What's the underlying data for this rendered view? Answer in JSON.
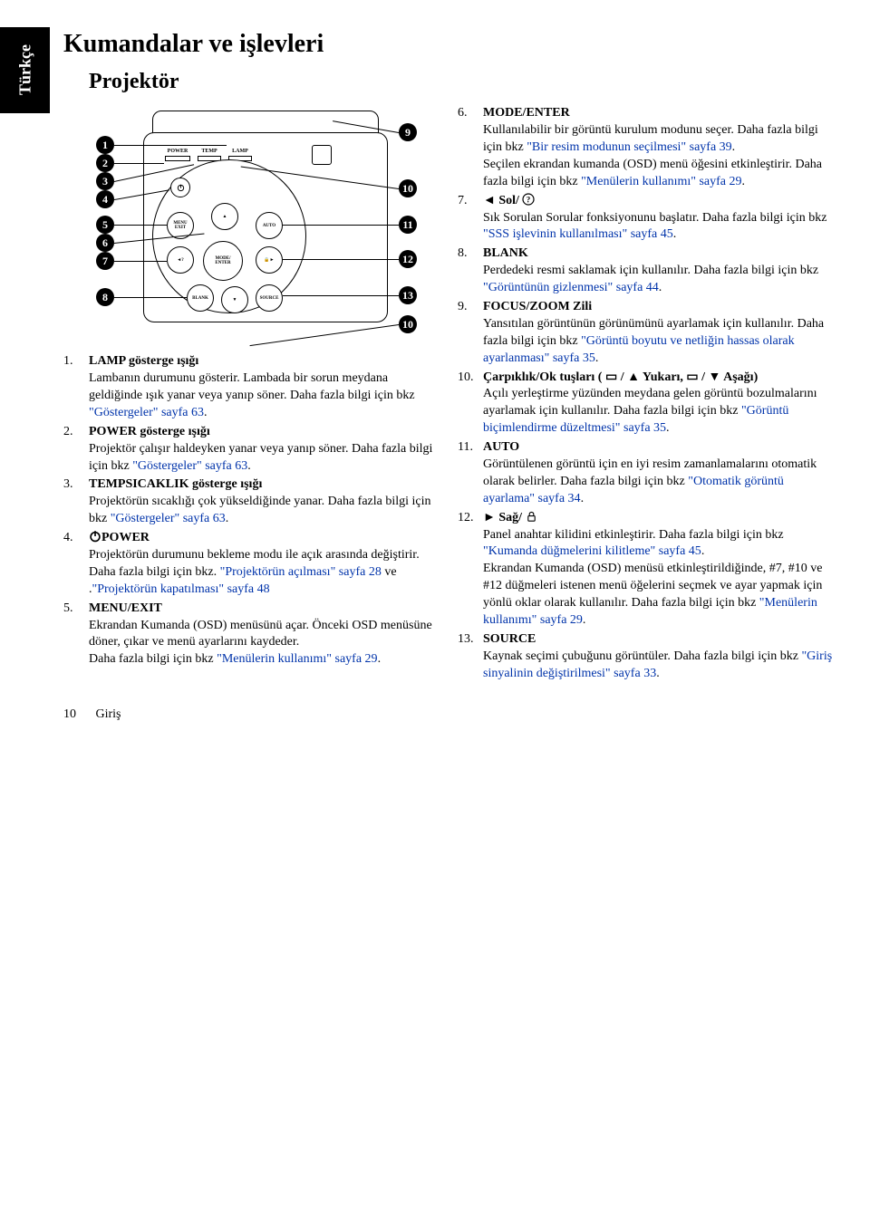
{
  "sideTab": "Türkçe",
  "title": "Kumandalar ve işlevleri",
  "subtitle": "Projektör",
  "diagram": {
    "indicators": {
      "power": "POWER",
      "temp": "TEMP",
      "lamp": "LAMP"
    },
    "buttons": {
      "menu": "MENU\nEXIT",
      "auto": "AUTO",
      "mode": "MODE/\nENTER",
      "blank": "BLANK",
      "source": "SOURCE"
    },
    "leftNums": [
      "1",
      "2",
      "3",
      "4",
      "5",
      "6",
      "7",
      "8"
    ],
    "rightNums": [
      "9",
      "10",
      "11",
      "12",
      "13",
      "10"
    ]
  },
  "left": [
    {
      "n": "1.",
      "title": "LAMP gösterge ışığı",
      "body": "Lambanın durumunu gösterir. Lambada bir sorun meydana geldiğinde ışık yanar veya yanıp söner. Daha fazla bilgi için bkz ",
      "link": "\"Göstergeler\" sayfa 63",
      "tail": "."
    },
    {
      "n": "2.",
      "title": "POWER gösterge ışığı",
      "body": "Projektör çalışır haldeyken yanar veya yanıp söner. Daha fazla bilgi için bkz ",
      "link": "\"Göstergeler\" sayfa 63",
      "tail": "."
    },
    {
      "n": "3.",
      "title": "TEMPSICAKLIK gösterge ışığı",
      "body": "Projektörün sıcaklığı çok yükseldiğinde yanar. Daha fazla bilgi için bkz ",
      "link": "\"Göstergeler\" sayfa 63",
      "tail": "."
    },
    {
      "n": "4.",
      "iconTitle": "power",
      "title": "POWER",
      "body": "Projektörün durumunu bekleme modu ile açık arasında değiştirir.\nDaha fazla bilgi için bkz. ",
      "link": "\"Projektörün açılması\" sayfa 28",
      "mid": " ve ",
      "link2": "\"Projektörün kapatılması\" sayfa 48",
      "tail": "."
    },
    {
      "n": "5.",
      "title": "MENU/EXIT",
      "body": "Ekrandan Kumanda (OSD) menüsünü açar. Önceki OSD menüsüne döner, çıkar ve menü ayarlarını kaydeder.\nDaha fazla bilgi için bkz ",
      "link": "\"Menülerin kullanımı\" sayfa 29",
      "tail": "."
    }
  ],
  "right": [
    {
      "n": "6.",
      "title": "MODE/ENTER",
      "body": "Kullanılabilir bir görüntü kurulum modunu seçer. Daha fazla bilgi için bkz ",
      "link": "\"Bir resim modunun seçilmesi\" sayfa 39",
      "tail": ".\nSeçilen ekrandan kumanda (OSD) menü öğesini etkinleştirir. Daha fazla bilgi için bkz ",
      "link2": "\"Menülerin kullanımı\" sayfa 29",
      "tail2": "."
    },
    {
      "n": "7.",
      "iconTitle": "left-q",
      "title": " Sol/ ",
      "body": "Sık Sorulan Sorular fonksiyonunu başlatır. Daha fazla bilgi için bkz ",
      "link": "\"SSS işlevinin kullanılması\" sayfa 45",
      "tail": "."
    },
    {
      "n": "8.",
      "title": "BLANK",
      "body": "Perdedeki resmi saklamak için kullanılır. Daha fazla bilgi için bkz ",
      "link": "\"Görüntünün gizlenmesi\" sayfa 44",
      "tail": "."
    },
    {
      "n": "9.",
      "title": "FOCUS/ZOOM Zili",
      "body": "Yansıtılan görüntünün görünümünü ayarlamak için kullanılır. Daha fazla bilgi için bkz ",
      "link": "\"Görüntü boyutu ve netliğin hassas olarak ayarlanması\" sayfa 35",
      "tail": "."
    },
    {
      "n": "10.",
      "title": "Çarpıklık/Ok tuşları ( ▭ / ▲ Yukarı, ▭ / ▼ Aşağı)",
      "body": "Açılı yerleştirme yüzünden meydana gelen görüntü bozulmalarını ayarlamak için kullanılır. Daha fazla bilgi için bkz ",
      "link": "\"Görüntü biçimlendirme düzeltmesi\" sayfa 35",
      "tail": "."
    },
    {
      "n": "11.",
      "title": "AUTO",
      "body": "Görüntülenen görüntü için en iyi resim zamanlamalarını otomatik olarak belirler. Daha fazla bilgi için bkz ",
      "link": "\"Otomatik görüntü ayarlama\" sayfa 34",
      "tail": "."
    },
    {
      "n": "12.",
      "iconTitle": "right-lock",
      "title": " Sağ/ ",
      "body": "Panel anahtar kilidini etkinleştirir. Daha fazla bilgi için bkz ",
      "link": "\"Kumanda düğmelerini kilitleme\" sayfa 45",
      "tail": ".\nEkrandan Kumanda (OSD) menüsü etkinleştirildiğinde, #7, #10 ve #12 düğmeleri istenen menü öğelerini seçmek ve ayar yapmak için yönlü oklar olarak kullanılır. Daha fazla bilgi için bkz ",
      "link2": "\"Menülerin kullanımı\" sayfa 29",
      "tail2": "."
    },
    {
      "n": "13.",
      "title": "SOURCE",
      "body": "Kaynak seçimi çubuğunu görüntüler. Daha fazla bilgi için bkz ",
      "link": "\"Giriş sinyalinin değiştirilmesi\" sayfa 33",
      "tail": "."
    }
  ],
  "footer": {
    "page": "10",
    "section": "Giriş"
  }
}
